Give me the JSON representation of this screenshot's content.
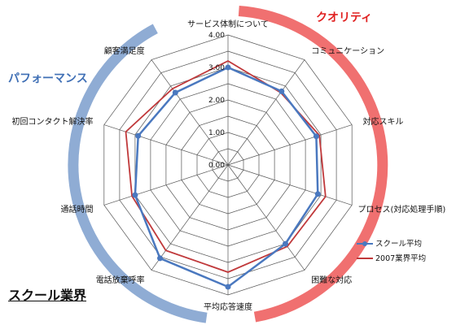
{
  "corner_title": "スクール業界",
  "chart_data": {
    "type": "radar",
    "title": "",
    "categories": [
      "サービス体制について",
      "コミュニケーション",
      "対応スキル",
      "プロセス(対応処理手順)",
      "困難な対応",
      "平均応答速度",
      "電話放棄呼率",
      "通話時間",
      "初回コンタクト解決率",
      "顧客満足度"
    ],
    "ticks": [
      "0.00",
      "1.00",
      "2.00",
      "3.00",
      "4.00"
    ],
    "rlim": [
      0,
      4
    ],
    "groups": [
      {
        "label": "クオリティ",
        "color": "#f07070"
      },
      {
        "label": "パフォーマンス",
        "color": "#8facd4"
      }
    ],
    "series": [
      {
        "name": "スクール平均",
        "color": "#4a78bf",
        "marker": "circle",
        "values": [
          3.0,
          2.8,
          2.85,
          2.9,
          3.0,
          3.75,
          3.55,
          3.0,
          2.9,
          2.75
        ]
      },
      {
        "name": "2007業界平均",
        "color": "#c0393b",
        "marker": "none",
        "values": [
          3.2,
          2.75,
          2.95,
          3.15,
          3.1,
          3.3,
          3.25,
          3.1,
          3.3,
          2.9
        ]
      }
    ],
    "legend_position": "bottom-right"
  }
}
